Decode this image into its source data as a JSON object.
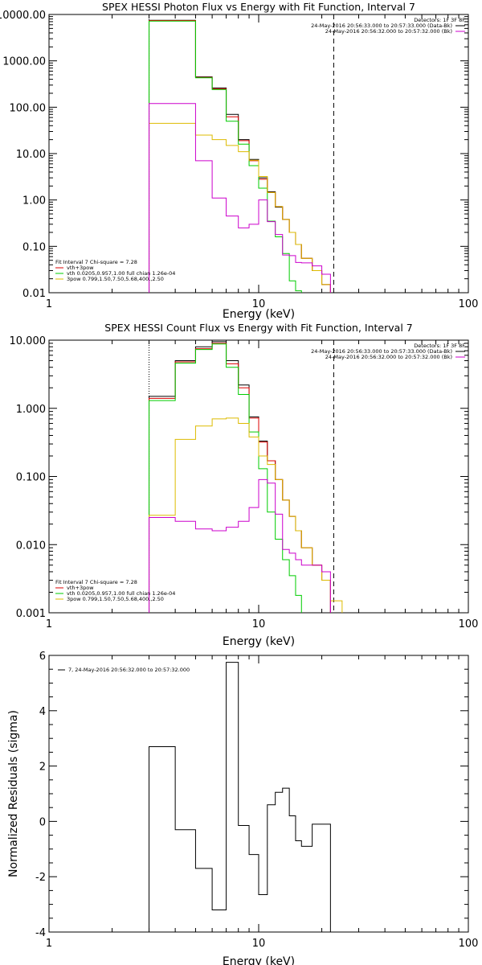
{
  "chart_data": [
    {
      "type": "line",
      "title": "SPEX HESSI Photon Flux vs Energy with Fit Function, Interval 7",
      "xlabel": "Energy (keV)",
      "ylabel": "",
      "xscale": "log",
      "yscale": "log",
      "xlim": [
        1,
        100
      ],
      "ylim": [
        0.01,
        10000
      ],
      "xticks": [
        {
          "v": 1,
          "label": "1"
        },
        {
          "v": 10,
          "label": "10"
        },
        {
          "v": 100,
          "label": "100"
        }
      ],
      "yticks": [
        {
          "v": 10000,
          "label": "10000.00"
        },
        {
          "v": 1000,
          "label": "1000.00"
        },
        {
          "v": 100,
          "label": "100.00"
        },
        {
          "v": 10,
          "label": "10.00"
        },
        {
          "v": 1,
          "label": "1.00"
        },
        {
          "v": 0.1,
          "label": "0.10"
        },
        {
          "v": 0.01,
          "label": "0.01"
        }
      ],
      "vlines": [
        {
          "x": 3.0,
          "style": "dotted"
        },
        {
          "x": 22.8,
          "style": "dashed"
        }
      ],
      "legend_topright": {
        "header": "Detectors: 1F 3F 8F",
        "entries": [
          {
            "text": "24-May-2016 20:56:33.000 to 20:57:33.000 (Data-Bk)",
            "color": "#000000"
          },
          {
            "text": "24-May-2016 20:56:32.000 to 20:57:32.000 (Bk)",
            "color": "#cc00cc"
          }
        ]
      },
      "legend_bottomleft": {
        "header": "Fit Interval  7    Chi-square = 7.28",
        "entries": [
          {
            "text": "vth+3pow",
            "color": "#dd0000"
          },
          {
            "text": "vth 0.0205,0.957,1.00  full chian 1.26e-04",
            "color": "#00cc00"
          },
          {
            "text": "3pow 0.799,1.50,7.50,5.68,400.,2.50",
            "color": "#ddbb00"
          }
        ]
      },
      "edges": [
        3.0,
        4.0,
        5.0,
        6.0,
        7.0,
        8.0,
        9.0,
        10.0,
        11.0,
        12.0,
        13.0,
        14.0,
        15.0,
        16.0,
        18.0,
        20.0,
        22.0,
        25.0,
        28.0
      ],
      "series": [
        {
          "name": "Data-Bk",
          "color": "#000000",
          "values": [
            7500,
            7500,
            450,
            260,
            70,
            20,
            7.5,
            3.0,
            1.5,
            0.7,
            0.38,
            0.2,
            0.11,
            0.055,
            0.03,
            0.015
          ]
        },
        {
          "name": "vth+3pow",
          "color": "#dd0000",
          "values": [
            7400,
            7400,
            440,
            250,
            62,
            19,
            7.0,
            2.8,
            1.45,
            0.72,
            0.38,
            0.2,
            0.11,
            0.055,
            0.03,
            0.015
          ]
        },
        {
          "name": "vth",
          "color": "#00cc00",
          "values": [
            7200,
            7200,
            430,
            240,
            50,
            16,
            5.5,
            1.8,
            0.35,
            0.16,
            0.07,
            0.018,
            0.011
          ]
        },
        {
          "name": "3pow",
          "color": "#ddbb00",
          "values": [
            45,
            45,
            25,
            20,
            15,
            11,
            7.2,
            3.2,
            1.45,
            0.72,
            0.38,
            0.2,
            0.11,
            0.055,
            0.03,
            0.015,
            0.009,
            0.006
          ]
        },
        {
          "name": "Bk",
          "color": "#cc00cc",
          "values": [
            120,
            120,
            7,
            1.1,
            0.45,
            0.25,
            0.3,
            1.0,
            0.34,
            0.18,
            0.065,
            0.063,
            0.045,
            0.044,
            0.038,
            0.025,
            0.005
          ]
        }
      ]
    },
    {
      "type": "line",
      "title": "SPEX HESSI Count Flux vs Energy with Fit Function, Interval 7",
      "xlabel": "Energy (keV)",
      "ylabel": "",
      "xscale": "log",
      "yscale": "log",
      "xlim": [
        1,
        100
      ],
      "ylim": [
        0.001,
        10
      ],
      "xticks": [
        {
          "v": 1,
          "label": "1"
        },
        {
          "v": 10,
          "label": "10"
        },
        {
          "v": 100,
          "label": "100"
        }
      ],
      "yticks": [
        {
          "v": 10,
          "label": "10.000"
        },
        {
          "v": 1,
          "label": "1.000"
        },
        {
          "v": 0.1,
          "label": "0.100"
        },
        {
          "v": 0.01,
          "label": "0.010"
        },
        {
          "v": 0.001,
          "label": "0.001"
        }
      ],
      "vlines": [
        {
          "x": 3.0,
          "style": "dotted"
        },
        {
          "x": 22.8,
          "style": "dashed"
        }
      ],
      "legend_topright": {
        "header": "Detectors: 1F 3F 8F",
        "entries": [
          {
            "text": "24-May-2016 20:56:33.000 to 20:57:33.000 (Data-Bk)",
            "color": "#000000"
          },
          {
            "text": "24-May-2016 20:56:32.000 to 20:57:32.000 (Bk)",
            "color": "#cc00cc"
          }
        ]
      },
      "legend_bottomleft": {
        "header": "Fit Interval  7    Chi-square = 7.28",
        "entries": [
          {
            "text": "vth+3pow",
            "color": "#dd0000"
          },
          {
            "text": "vth 0.0205,0.957,1.00  full chian 1.26e-04",
            "color": "#00cc00"
          },
          {
            "text": "3pow 0.799,1.50,7.50,5.68,400.,2.50",
            "color": "#ddbb00"
          }
        ]
      },
      "edges": [
        3.0,
        4.0,
        5.0,
        6.0,
        7.0,
        8.0,
        9.0,
        10.0,
        11.0,
        12.0,
        13.0,
        14.0,
        15.0,
        16.0,
        18.0,
        20.0,
        22.0,
        25.0,
        28.0
      ],
      "series": [
        {
          "name": "Data-Bk",
          "color": "#000000",
          "values": [
            1.5,
            5.0,
            8.0,
            9.5,
            5.0,
            2.2,
            0.75,
            0.33,
            0.17,
            0.09,
            0.045,
            0.026,
            0.016,
            0.009,
            0.005,
            0.003
          ]
        },
        {
          "name": "vth+3pow",
          "color": "#dd0000",
          "values": [
            1.4,
            4.8,
            7.5,
            9.0,
            4.5,
            2.0,
            0.72,
            0.32,
            0.17,
            0.09,
            0.045,
            0.026,
            0.016,
            0.009,
            0.005,
            0.003
          ]
        },
        {
          "name": "vth",
          "color": "#00cc00",
          "values": [
            1.3,
            4.6,
            7.3,
            8.8,
            4.0,
            1.6,
            0.45,
            0.13,
            0.03,
            0.012,
            0.006,
            0.0035,
            0.0018
          ]
        },
        {
          "name": "3pow",
          "color": "#ddbb00",
          "values": [
            0.027,
            0.35,
            0.55,
            0.7,
            0.72,
            0.6,
            0.38,
            0.2,
            0.15,
            0.09,
            0.045,
            0.026,
            0.016,
            0.009,
            0.005,
            0.003,
            0.0015,
            0.0009
          ]
        },
        {
          "name": "Bk",
          "color": "#cc00cc",
          "values": [
            0.025,
            0.022,
            0.017,
            0.016,
            0.018,
            0.022,
            0.035,
            0.09,
            0.08,
            0.028,
            0.0085,
            0.0075,
            0.006,
            0.005,
            0.005,
            0.004,
            0.0009
          ]
        }
      ]
    },
    {
      "type": "line",
      "title": "",
      "xlabel": "Energy (keV)",
      "ylabel": "Normalized Residuals (sigma)",
      "xscale": "log",
      "yscale": "linear",
      "xlim": [
        1,
        100
      ],
      "ylim": [
        -4,
        6
      ],
      "xticks": [
        {
          "v": 1,
          "label": "1"
        },
        {
          "v": 10,
          "label": "10"
        },
        {
          "v": 100,
          "label": "100"
        }
      ],
      "yticks": [
        {
          "v": 6,
          "label": "6"
        },
        {
          "v": 4,
          "label": "4"
        },
        {
          "v": 2,
          "label": "2"
        },
        {
          "v": 0,
          "label": "0"
        },
        {
          "v": -2,
          "label": "-2"
        },
        {
          "v": -4,
          "label": "-4"
        }
      ],
      "legend_topleft": {
        "entries": [
          {
            "text": "7, 24-May-2016 20:56:32.000 to 20:57:32.000",
            "color": "#000000"
          }
        ]
      },
      "edges": [
        3.0,
        4.0,
        5.0,
        6.0,
        7.0,
        8.0,
        9.0,
        10.0,
        11.0,
        12.0,
        13.0,
        14.0,
        15.0,
        16.0,
        18.0,
        20.0,
        22.0
      ],
      "series": [
        {
          "name": "",
          "color": "#000000",
          "values": [
            2.7,
            -0.3,
            -1.7,
            -3.2,
            5.75,
            -0.15,
            -1.2,
            -2.65,
            0.6,
            1.05,
            1.2,
            0.2,
            -0.7,
            -0.9,
            -0.1,
            -0.1
          ]
        }
      ]
    }
  ]
}
